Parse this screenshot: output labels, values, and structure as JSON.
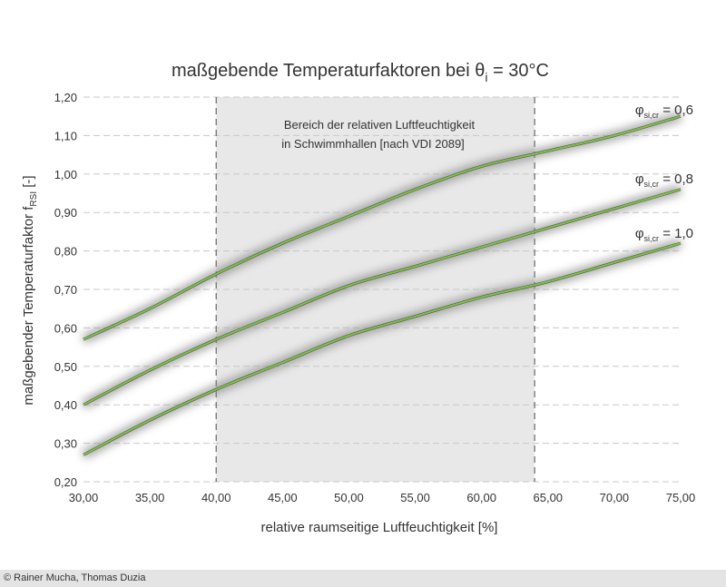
{
  "chart_data": {
    "type": "line",
    "title": "maßgebende Temperaturfaktoren bei θ",
    "title_sub": "i",
    "title_suffix": " = 30°C",
    "xlabel": "relative raumseitige Luftfeuchtigkeit [%]",
    "ylabel": "maßgebender Temperaturfaktor f",
    "ylabel_sub": "RSI",
    "ylabel_suffix": " [-]",
    "xlim": [
      30,
      75
    ],
    "ylim": [
      0.2,
      1.2
    ],
    "x_ticks": [
      "30,00",
      "35,00",
      "40,00",
      "45,00",
      "50,00",
      "55,00",
      "60,00",
      "65,00",
      "70,00",
      "75,00"
    ],
    "y_ticks": [
      "0,20",
      "0,30",
      "0,40",
      "0,50",
      "0,60",
      "0,70",
      "0,80",
      "0,90",
      "1,00",
      "1,10",
      "1,20"
    ],
    "grid": "horizontal dashed",
    "region": {
      "x_from": 40,
      "x_to": 64,
      "label_line1": "Bereich der relativen Luftfeuchtigkeit",
      "label_line2": "in Schwimmhallen [nach VDI 2089]",
      "color": "#e8e8e8"
    },
    "line_color": "#7dc242",
    "series": [
      {
        "name": "φsi,cr = 0,6",
        "label_base": "φ",
        "label_sub": "si,cr",
        "label_value": " = 0,6",
        "x": [
          30,
          35,
          40,
          45,
          50,
          55,
          60,
          65,
          70,
          75
        ],
        "values": [
          0.57,
          0.65,
          0.74,
          0.82,
          0.89,
          0.96,
          1.02,
          1.06,
          1.1,
          1.15
        ]
      },
      {
        "name": "φsi,cr = 0,8",
        "label_base": "φ",
        "label_sub": "si,cr",
        "label_value": " = 0,8",
        "x": [
          30,
          35,
          40,
          45,
          50,
          55,
          60,
          65,
          70,
          75
        ],
        "values": [
          0.4,
          0.49,
          0.57,
          0.64,
          0.71,
          0.76,
          0.81,
          0.86,
          0.91,
          0.96
        ]
      },
      {
        "name": "φsi,cr = 1,0",
        "label_base": "φ",
        "label_sub": "si,cr",
        "label_value": " = 1,0",
        "x": [
          30,
          35,
          40,
          45,
          50,
          55,
          60,
          65,
          70,
          75
        ],
        "values": [
          0.27,
          0.36,
          0.44,
          0.51,
          0.58,
          0.63,
          0.68,
          0.72,
          0.77,
          0.82
        ]
      }
    ]
  },
  "footer": {
    "copyright": "© Rainer Mucha, Thomas Duzia"
  }
}
